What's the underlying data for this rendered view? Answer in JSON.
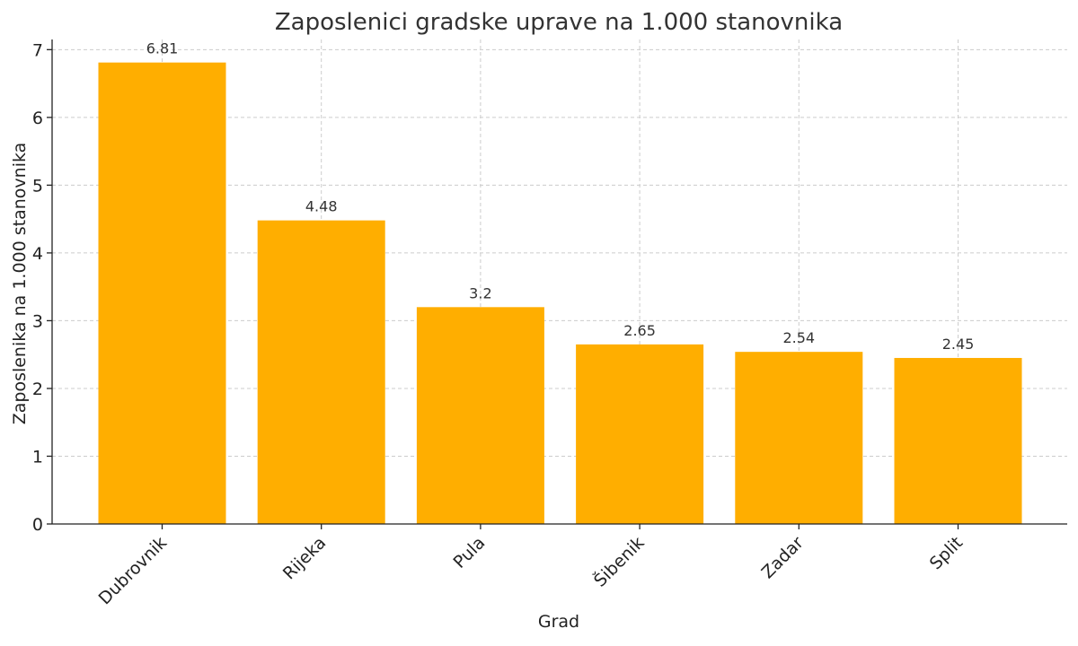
{
  "chart_data": {
    "type": "bar",
    "title": "Zaposlenici gradske uprave na 1.000 stanovnika",
    "xlabel": "Grad",
    "ylabel": "Zaposlenika na 1.000 stanovnika",
    "categories": [
      "Dubrovnik",
      "Rijeka",
      "Pula",
      "Šibenik",
      "Zadar",
      "Split"
    ],
    "values": [
      6.81,
      4.48,
      3.2,
      2.65,
      2.54,
      2.45
    ],
    "data_labels": [
      "6.81",
      "4.48",
      "3.2",
      "2.65",
      "2.54",
      "2.45"
    ],
    "ylim": [
      0,
      7.15
    ],
    "yticks": [
      0,
      1,
      2,
      3,
      4,
      5,
      6,
      7
    ],
    "grid": true,
    "bar_color": "#FFAE00"
  }
}
